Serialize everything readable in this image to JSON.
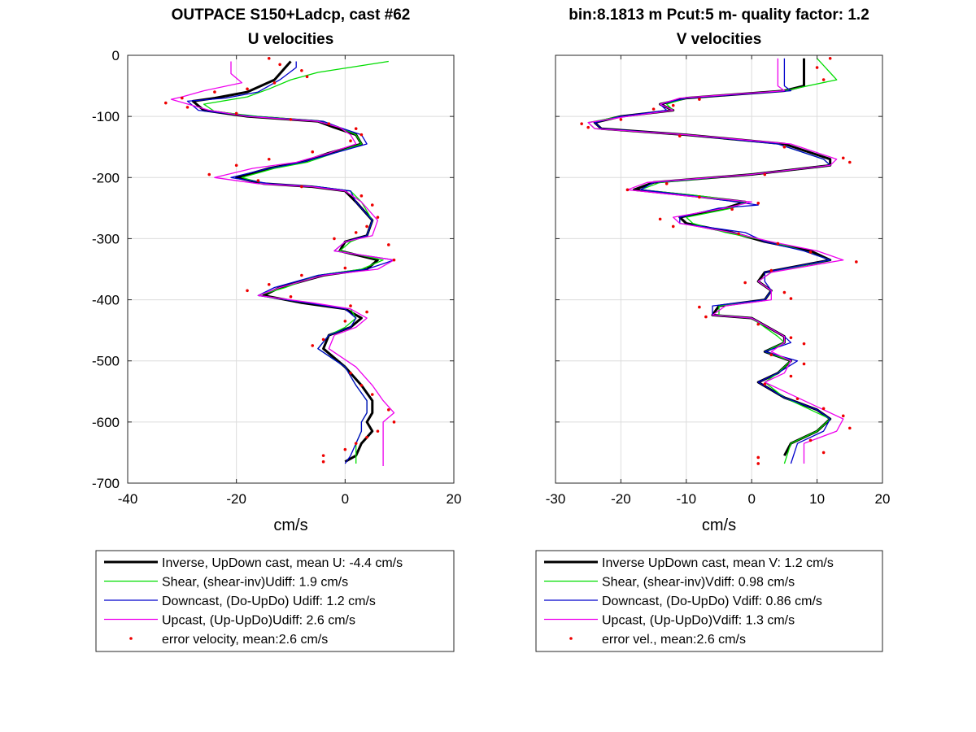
{
  "chart_data": [
    {
      "type": "line",
      "title": "OUTPACE S150+Ladcp, cast #62",
      "subtitle": "U velocities",
      "xlabel": "cm/s",
      "ylabel": "",
      "xlim": [
        -40,
        20
      ],
      "ylim": [
        -700,
        0
      ],
      "xticks": [
        "-40",
        "-20",
        "0",
        "20"
      ],
      "yticks": [
        "0",
        "-100",
        "-200",
        "-300",
        "-400",
        "-500",
        "-600",
        "-700"
      ],
      "grid": true,
      "legend_position": "below",
      "series": [
        {
          "name": "Inverse, UpDown cast, mean U:  -4.4 cm/s",
          "color": "#000000",
          "width": 3,
          "x": [
            -10,
            -11,
            -13,
            -18,
            -24,
            -28,
            -26,
            -18,
            -5,
            -2,
            2,
            3,
            -3,
            -8,
            -14,
            -20,
            -15,
            -6,
            0,
            2,
            5,
            4,
            0,
            -1,
            6,
            4,
            -4,
            -12,
            -15,
            -8,
            0,
            3,
            1,
            -3,
            -4,
            0,
            3,
            5,
            5,
            4,
            5,
            3,
            2,
            0
          ],
          "y": [
            -10,
            -20,
            -40,
            -60,
            -70,
            -75,
            -90,
            -100,
            -108,
            -118,
            -130,
            -145,
            -160,
            -175,
            -185,
            -200,
            -210,
            -215,
            -222,
            -240,
            -270,
            -295,
            -305,
            -320,
            -335,
            -350,
            -360,
            -380,
            -393,
            -405,
            -415,
            -430,
            -445,
            -458,
            -480,
            -510,
            -540,
            -565,
            -585,
            -600,
            -615,
            -635,
            -655,
            -665
          ]
        },
        {
          "name": "Shear, (shear-inv)Udiff:  1.9 cm/s",
          "color": "#00dd00",
          "width": 1.3,
          "x": [
            8,
            -5,
            -10,
            -14,
            -18,
            -26,
            -24,
            -16,
            -4,
            -1,
            2,
            3,
            -2,
            -7,
            -13,
            -19,
            -15,
            -5,
            1,
            3,
            5,
            4,
            1,
            -1,
            7,
            3,
            -5,
            -11,
            -16,
            -7,
            1,
            2,
            0,
            -3,
            -5,
            0,
            2,
            4,
            4,
            3,
            3,
            2,
            2,
            2
          ],
          "y": [
            -10,
            -28,
            -40,
            -55,
            -68,
            -80,
            -92,
            -100,
            -108,
            -118,
            -130,
            -145,
            -160,
            -175,
            -185,
            -200,
            -210,
            -215,
            -222,
            -240,
            -270,
            -295,
            -305,
            -320,
            -335,
            -350,
            -360,
            -380,
            -393,
            -405,
            -415,
            -430,
            -445,
            -458,
            -480,
            -510,
            -540,
            -565,
            -585,
            -600,
            -615,
            -635,
            -655,
            -668
          ]
        },
        {
          "name": "Downcast, (Do-UpDo) Udiff:  1.2 cm/s",
          "color": "#0000cc",
          "width": 1.3,
          "x": [
            -9,
            -9,
            -12,
            -16,
            -22,
            -29,
            -27,
            -17,
            -4,
            -1,
            3,
            4,
            -2,
            -8,
            -14,
            -21,
            -14,
            -5,
            1,
            2,
            5,
            4,
            0,
            -2,
            9,
            4,
            -5,
            -13,
            -16,
            -7,
            0,
            2,
            1,
            -3,
            -5,
            0,
            2,
            4,
            4,
            3,
            3,
            2,
            1,
            0
          ],
          "y": [
            -10,
            -20,
            -40,
            -60,
            -70,
            -75,
            -90,
            -100,
            -108,
            -118,
            -130,
            -145,
            -160,
            -175,
            -185,
            -200,
            -210,
            -215,
            -222,
            -240,
            -270,
            -295,
            -305,
            -320,
            -335,
            -350,
            -360,
            -380,
            -393,
            -405,
            -415,
            -430,
            -445,
            -458,
            -480,
            -510,
            -540,
            -565,
            -585,
            -600,
            -615,
            -635,
            -655,
            -668
          ]
        },
        {
          "name": "Upcast, (Up-UpDo)Udiff:  2.6 cm/s",
          "color": "#ee00ee",
          "width": 1.3,
          "x": [
            -21,
            -21,
            -19,
            -26,
            -30,
            -32,
            -25,
            -18,
            -5,
            -1,
            1,
            2,
            -3,
            -9,
            -17,
            -24,
            -16,
            -6,
            0,
            3,
            6,
            5,
            0,
            -2,
            9,
            6,
            -4,
            -12,
            -16,
            -6,
            1,
            4,
            2,
            -2,
            -3,
            2,
            5,
            7,
            9,
            7,
            7,
            7,
            7,
            7
          ],
          "y": [
            -10,
            -30,
            -45,
            -58,
            -68,
            -72,
            -90,
            -100,
            -108,
            -118,
            -130,
            -145,
            -160,
            -175,
            -185,
            -200,
            -210,
            -215,
            -222,
            -240,
            -270,
            -295,
            -305,
            -320,
            -335,
            -350,
            -360,
            -380,
            -393,
            -405,
            -415,
            -430,
            -445,
            -458,
            -480,
            -510,
            -540,
            -565,
            -585,
            -600,
            -615,
            -635,
            -655,
            -672
          ]
        },
        {
          "name": "error velocity, mean:2.6 cm/s",
          "color": "#ee0000",
          "marker": "dot",
          "x": [
            -14,
            -12,
            -8,
            -7,
            -13,
            -18,
            -24,
            -30,
            -33,
            -29,
            -20,
            -10,
            -3,
            2,
            3,
            1,
            -6,
            -14,
            -20,
            -25,
            -16,
            -8,
            3,
            5,
            6,
            4,
            2,
            -2,
            8,
            9,
            0,
            -8,
            -14,
            -18,
            -10,
            1,
            4,
            0,
            -4,
            -6,
            1,
            3,
            5,
            8,
            9,
            6,
            4,
            2,
            0,
            -4,
            -4
          ],
          "y": [
            -5,
            -15,
            -25,
            -35,
            -45,
            -55,
            -60,
            -70,
            -78,
            -85,
            -95,
            -105,
            -112,
            -120,
            -130,
            -140,
            -158,
            -170,
            -180,
            -195,
            -205,
            -215,
            -230,
            -245,
            -265,
            -280,
            -290,
            -300,
            -310,
            -335,
            -348,
            -360,
            -375,
            -385,
            -395,
            -410,
            -420,
            -435,
            -465,
            -475,
            -520,
            -540,
            -555,
            -580,
            -600,
            -615,
            -625,
            -635,
            -645,
            -655,
            -665
          ]
        }
      ]
    },
    {
      "type": "line",
      "title": "bin:8.1813 m  Pcut:5 m- quality factor:  1.2",
      "subtitle": "V velocities",
      "xlabel": "cm/s",
      "ylabel": "",
      "xlim": [
        -30,
        20
      ],
      "ylim": [
        -700,
        0
      ],
      "xticks": [
        "-30",
        "-20",
        "-10",
        "0",
        "10",
        "20"
      ],
      "grid": true,
      "legend_position": "below",
      "series": [
        {
          "name": "Inverse UpDown cast, mean V:  1.2 cm/s",
          "color": "#000000",
          "width": 3,
          "x": [
            8,
            8,
            5,
            -10,
            -14,
            -12,
            -20,
            -24,
            -23,
            -10,
            5,
            12,
            12,
            0,
            -15,
            -18,
            -9,
            -1,
            -4,
            -11,
            -10,
            -3,
            2,
            9,
            12,
            2,
            1,
            3,
            2,
            -5,
            -6,
            0,
            5,
            5,
            2,
            6,
            4,
            1,
            5,
            10,
            12,
            10,
            6,
            5
          ],
          "y": [
            -5,
            -50,
            -58,
            -70,
            -80,
            -90,
            -100,
            -110,
            -120,
            -130,
            -145,
            -170,
            -180,
            -195,
            -208,
            -220,
            -230,
            -240,
            -250,
            -265,
            -275,
            -290,
            -305,
            -320,
            -335,
            -355,
            -370,
            -385,
            -400,
            -410,
            -425,
            -430,
            -460,
            -470,
            -485,
            -500,
            -520,
            -535,
            -560,
            -580,
            -595,
            -615,
            -635,
            -655
          ]
        },
        {
          "name": "Shear, (shear-inv)Vdiff:  0.98 cm/s",
          "color": "#00dd00",
          "width": 1.3,
          "x": [
            10,
            13,
            5,
            -10,
            -13,
            -12,
            -20,
            -25,
            -24,
            -10,
            4,
            11,
            12,
            0,
            -14,
            -17,
            -8,
            -1,
            -3,
            -10,
            -9,
            -4,
            3,
            8,
            12,
            3,
            1,
            3,
            2,
            -5,
            -5,
            0,
            4,
            5,
            2,
            6,
            4,
            2,
            5,
            9,
            12,
            10,
            6,
            5
          ],
          "y": [
            -5,
            -40,
            -58,
            -70,
            -80,
            -90,
            -100,
            -110,
            -120,
            -130,
            -145,
            -170,
            -180,
            -195,
            -208,
            -220,
            -230,
            -240,
            -250,
            -265,
            -275,
            -290,
            -305,
            -320,
            -335,
            -355,
            -370,
            -385,
            -400,
            -410,
            -425,
            -430,
            -460,
            -470,
            -485,
            -500,
            -520,
            -535,
            -560,
            -580,
            -595,
            -615,
            -635,
            -668
          ]
        },
        {
          "name": "Downcast, (Do-UpDo) Vdiff:  0.86 cm/s",
          "color": "#0000cc",
          "width": 1.3,
          "x": [
            5,
            5,
            6,
            -10,
            -14,
            -13,
            -20,
            -24,
            -23,
            -10,
            4,
            11,
            12,
            0,
            -15,
            -17,
            -9,
            1,
            -5,
            -11,
            -11,
            -1,
            2,
            8,
            12,
            2,
            2,
            3,
            2,
            -6,
            -6,
            0,
            5,
            6,
            2,
            7,
            4,
            1,
            5,
            10,
            12,
            11,
            7,
            6
          ],
          "y": [
            -5,
            -50,
            -58,
            -70,
            -80,
            -90,
            -100,
            -110,
            -120,
            -130,
            -145,
            -170,
            -180,
            -195,
            -208,
            -220,
            -230,
            -245,
            -250,
            -265,
            -275,
            -290,
            -305,
            -320,
            -335,
            -355,
            -370,
            -385,
            -400,
            -410,
            -425,
            -430,
            -460,
            -470,
            -485,
            -500,
            -520,
            -535,
            -560,
            -580,
            -595,
            -615,
            -635,
            -668
          ]
        },
        {
          "name": "Upcast, (Up-UpDo)Vdiff:  1.3 cm/s",
          "color": "#ee00ee",
          "width": 1.3,
          "x": [
            4,
            4,
            5,
            -11,
            -14,
            -12,
            -19,
            -25,
            -24,
            -10,
            6,
            13,
            12,
            0,
            -16,
            -19,
            -10,
            0,
            -4,
            -12,
            -11,
            -3,
            3,
            10,
            14,
            3,
            1,
            3,
            3,
            -4,
            -6,
            0,
            5,
            5,
            3,
            6,
            5,
            2,
            7,
            11,
            14,
            13,
            8,
            8
          ],
          "y": [
            -5,
            -50,
            -58,
            -70,
            -80,
            -90,
            -100,
            -110,
            -120,
            -130,
            -145,
            -170,
            -180,
            -195,
            -208,
            -220,
            -230,
            -240,
            -250,
            -265,
            -275,
            -290,
            -305,
            -320,
            -335,
            -355,
            -370,
            -385,
            -400,
            -410,
            -425,
            -430,
            -460,
            -470,
            -485,
            -500,
            -520,
            -535,
            -560,
            -580,
            -595,
            -615,
            -635,
            -668
          ]
        },
        {
          "name": "error vel., mean:2.6 cm/s",
          "color": "#ee0000",
          "marker": "dot",
          "x": [
            12,
            10,
            11,
            -8,
            -12,
            -15,
            -20,
            -26,
            -25,
            -11,
            5,
            14,
            15,
            2,
            -13,
            -19,
            -8,
            1,
            -3,
            -14,
            -12,
            -2,
            4,
            9,
            16,
            3,
            -1,
            5,
            6,
            -8,
            -7,
            1,
            6,
            8,
            3,
            8,
            6,
            2,
            7,
            11,
            14,
            15,
            9,
            11,
            1,
            1
          ],
          "y": [
            -5,
            -20,
            -40,
            -72,
            -82,
            -88,
            -105,
            -112,
            -118,
            -132,
            -150,
            -168,
            -175,
            -195,
            -210,
            -220,
            -232,
            -242,
            -252,
            -268,
            -280,
            -292,
            -308,
            -322,
            -338,
            -352,
            -372,
            -388,
            -398,
            -412,
            -428,
            -440,
            -462,
            -472,
            -490,
            -505,
            -525,
            -538,
            -562,
            -578,
            -590,
            -610,
            -630,
            -650,
            -658,
            -668
          ]
        }
      ]
    }
  ]
}
